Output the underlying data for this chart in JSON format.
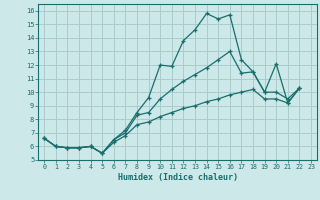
{
  "xlabel": "Humidex (Indice chaleur)",
  "bg_color": "#cce8e8",
  "grid_color": "#aacccc",
  "line_color": "#1a6e6e",
  "xlim": [
    -0.5,
    23.5
  ],
  "ylim": [
    5,
    16.5
  ],
  "xticks": [
    0,
    1,
    2,
    3,
    4,
    5,
    6,
    7,
    8,
    9,
    10,
    11,
    12,
    13,
    14,
    15,
    16,
    17,
    18,
    19,
    20,
    21,
    22,
    23
  ],
  "yticks": [
    5,
    6,
    7,
    8,
    9,
    10,
    11,
    12,
    13,
    14,
    15,
    16
  ],
  "line1_x": [
    0,
    1,
    2,
    3,
    4,
    5,
    6,
    7,
    8,
    9,
    10,
    11,
    12,
    13,
    14,
    15,
    16,
    17,
    18,
    19,
    20,
    21,
    22
  ],
  "line1_y": [
    6.6,
    6.0,
    5.9,
    5.9,
    6.0,
    5.5,
    6.5,
    7.2,
    8.5,
    9.6,
    12.0,
    11.9,
    13.8,
    14.6,
    15.8,
    15.4,
    15.7,
    12.4,
    11.5,
    10.0,
    12.1,
    9.2,
    10.3
  ],
  "line2_x": [
    0,
    1,
    2,
    3,
    4,
    5,
    6,
    7,
    8,
    9,
    10,
    11,
    12,
    13,
    14,
    15,
    16,
    17,
    18,
    19,
    20,
    21,
    22
  ],
  "line2_y": [
    6.6,
    6.0,
    5.9,
    5.9,
    6.0,
    5.5,
    6.5,
    7.0,
    8.3,
    8.5,
    9.5,
    10.2,
    10.8,
    11.3,
    11.8,
    12.4,
    13.0,
    11.4,
    11.5,
    10.0,
    10.0,
    9.5,
    10.3
  ],
  "line3_x": [
    0,
    1,
    2,
    3,
    4,
    5,
    6,
    7,
    8,
    9,
    10,
    11,
    12,
    13,
    14,
    15,
    16,
    17,
    18,
    19,
    20,
    21,
    22
  ],
  "line3_y": [
    6.6,
    6.0,
    5.9,
    5.9,
    6.0,
    5.5,
    6.3,
    6.8,
    7.6,
    7.8,
    8.2,
    8.5,
    8.8,
    9.0,
    9.3,
    9.5,
    9.8,
    10.0,
    10.2,
    9.5,
    9.5,
    9.2,
    10.3
  ]
}
